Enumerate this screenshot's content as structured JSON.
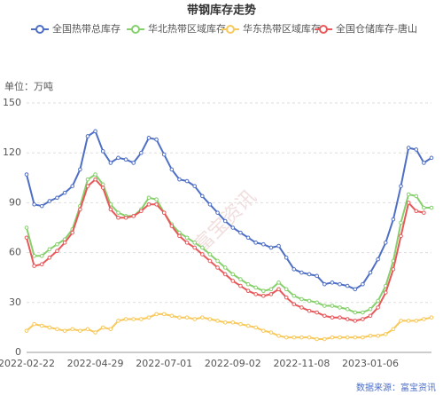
{
  "chart_data": {
    "type": "line",
    "title": "带钢库存走势",
    "y_unit": "单位：万吨",
    "watermark": "富宝资讯",
    "source": "数据来源：富宝资讯",
    "legend": "top",
    "grid": true,
    "categories": [
      "2022-02-22",
      null,
      null,
      null,
      null,
      null,
      null,
      null,
      null,
      "2022-04-29",
      null,
      null,
      null,
      null,
      null,
      null,
      null,
      null,
      "2022-07-01",
      null,
      null,
      null,
      null,
      null,
      null,
      null,
      null,
      "2022-09-02",
      null,
      null,
      null,
      null,
      null,
      null,
      null,
      null,
      "2022-11-08",
      null,
      null,
      null,
      null,
      null,
      null,
      null,
      null,
      "2023-01-06",
      null,
      null,
      null,
      null,
      null,
      null,
      null,
      null
    ],
    "ylim": [
      0,
      150
    ],
    "yticks": [
      0,
      30,
      60,
      90,
      120,
      150
    ],
    "series": [
      {
        "name": "全国热带总库存",
        "color": "#4e6fc5",
        "values": [
          107,
          89,
          88,
          91,
          93,
          96,
          100,
          110,
          130,
          133,
          121,
          114,
          117,
          116,
          114,
          120,
          129,
          128,
          119,
          110,
          104,
          103,
          100,
          94,
          89,
          84,
          79,
          75,
          72,
          69,
          66,
          65,
          63,
          64,
          57,
          50,
          48,
          47,
          46,
          41,
          42,
          41,
          40,
          38,
          41,
          48,
          56,
          66,
          80,
          100,
          123,
          122,
          114,
          117
        ]
      },
      {
        "name": "华北热带区域库存",
        "color": "#86d06c",
        "values": [
          75,
          58,
          58,
          62,
          65,
          68,
          74,
          88,
          104,
          107,
          101,
          89,
          84,
          82,
          82,
          86,
          93,
          92,
          84,
          77,
          72,
          69,
          66,
          63,
          59,
          55,
          51,
          47,
          44,
          41,
          39,
          37,
          38,
          42,
          38,
          34,
          32,
          31,
          30,
          28,
          28,
          27,
          26,
          24,
          24,
          26,
          31,
          40,
          55,
          78,
          95,
          94,
          87,
          87
        ]
      },
      {
        "name": "华东热带区域库存",
        "color": "#f8c95a",
        "values": [
          13,
          17,
          16,
          15,
          14,
          13,
          14,
          13,
          14,
          12,
          15,
          14,
          19,
          20,
          20,
          20,
          21,
          23,
          23,
          22,
          21,
          21,
          20,
          21,
          20,
          19,
          18,
          18,
          17,
          16,
          15,
          13,
          12,
          10,
          9,
          9,
          9,
          9,
          8,
          8,
          9,
          9,
          9,
          9,
          9,
          10,
          10,
          11,
          14,
          19,
          19,
          19,
          20,
          21
        ]
      },
      {
        "name": "全国仓储库存-唐山",
        "color": "#e8585a",
        "values": [
          69,
          52,
          53,
          57,
          61,
          66,
          72,
          86,
          100,
          104,
          99,
          86,
          81,
          81,
          82,
          85,
          89,
          89,
          84,
          76,
          70,
          66,
          63,
          59,
          55,
          51,
          47,
          43,
          40,
          37,
          35,
          34,
          35,
          38,
          33,
          29,
          27,
          25,
          24,
          22,
          21,
          21,
          20,
          19,
          20,
          22,
          27,
          36,
          50,
          70,
          90,
          85,
          84,
          null
        ]
      }
    ]
  }
}
